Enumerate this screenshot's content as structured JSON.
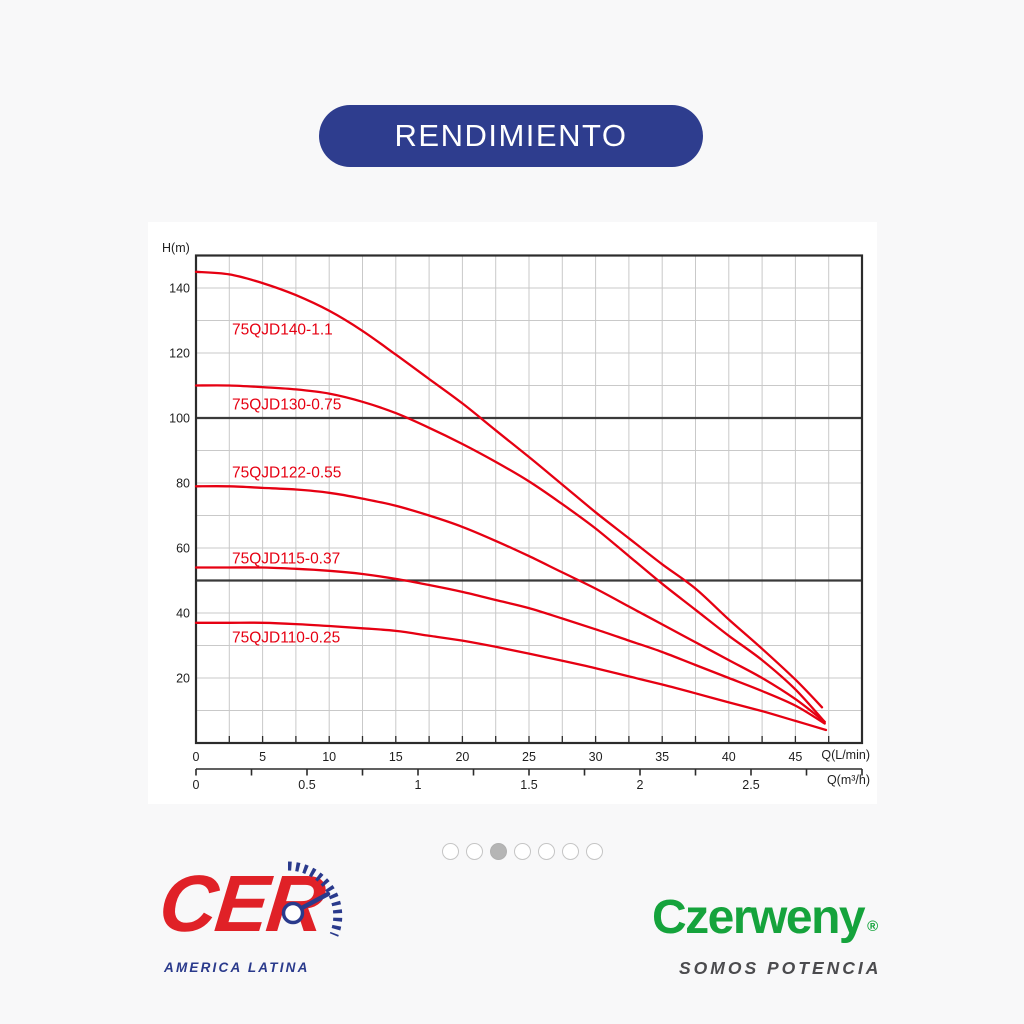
{
  "page": {
    "background": "#f8f8f9"
  },
  "header": {
    "title": "RENDIMIENTO",
    "pill_color": "#2e3d8e"
  },
  "chart_data": {
    "type": "line",
    "title": "",
    "ylabel": "H(m)",
    "xlabel_primary": "Q(L/min)",
    "xlabel_secondary": "Q(m³/h)",
    "x_range_lmin": [
      0,
      50
    ],
    "y_range": [
      0,
      150
    ],
    "x_grid_step_lmin": 2.5,
    "y_grid_step": 10,
    "x_tick_labels_lmin": [
      0,
      5,
      10,
      15,
      20,
      25,
      30,
      35,
      40,
      45
    ],
    "y_tick_labels": [
      20,
      40,
      60,
      80,
      100,
      120,
      140
    ],
    "emphasis_lines_y": [
      50,
      100
    ],
    "grid": true,
    "legend_position": "inline-labels",
    "secondary_axis": {
      "lmin_per_unit": 16.6667,
      "tick_step": 0.25,
      "labels": [
        0,
        0.5,
        1,
        1.5,
        2,
        2.5
      ]
    },
    "colors": {
      "curve": "#e60012",
      "grid": "#c9c9c9",
      "border": "#2b2b2b",
      "emphasis": "#3a3a3a",
      "text": "#1f1f1f"
    },
    "series": [
      {
        "name": "75QJD140-1.1",
        "label_anchor": {
          "q": 2.7,
          "h": 127.4
        },
        "points": [
          [
            0,
            145
          ],
          [
            2.5,
            144.2
          ],
          [
            5,
            141.5
          ],
          [
            7.5,
            137.8
          ],
          [
            10,
            133
          ],
          [
            12.5,
            126.8
          ],
          [
            15,
            119.5
          ],
          [
            17.5,
            112
          ],
          [
            20,
            104.5
          ],
          [
            22.5,
            96.2
          ],
          [
            25,
            88
          ],
          [
            27.5,
            79.5
          ],
          [
            30,
            71
          ],
          [
            32.5,
            63
          ],
          [
            35,
            55
          ],
          [
            37.5,
            47.5
          ],
          [
            40,
            38
          ],
          [
            42.5,
            29
          ],
          [
            45,
            19.5
          ],
          [
            47,
            11
          ]
        ]
      },
      {
        "name": "75QJD130-0.75",
        "label_anchor": {
          "q": 2.7,
          "h": 104.3
        },
        "points": [
          [
            0,
            110
          ],
          [
            2.5,
            110
          ],
          [
            5,
            109.5
          ],
          [
            7.5,
            108.8
          ],
          [
            10,
            107.5
          ],
          [
            12.5,
            105
          ],
          [
            15,
            101.5
          ],
          [
            17.5,
            97
          ],
          [
            20,
            92
          ],
          [
            22.5,
            86.5
          ],
          [
            25,
            80.5
          ],
          [
            27.5,
            73.5
          ],
          [
            30,
            66
          ],
          [
            32.5,
            57.5
          ],
          [
            35,
            49
          ],
          [
            37.5,
            41
          ],
          [
            40,
            33
          ],
          [
            42.5,
            25.5
          ],
          [
            45,
            16.5
          ],
          [
            47.2,
            6.5
          ]
        ]
      },
      {
        "name": "75QJD122-0.55",
        "label_anchor": {
          "q": 2.7,
          "h": 83.4
        },
        "points": [
          [
            0,
            79
          ],
          [
            2.5,
            79
          ],
          [
            5,
            78.5
          ],
          [
            7.5,
            78
          ],
          [
            10,
            77
          ],
          [
            12.5,
            75.2
          ],
          [
            15,
            73
          ],
          [
            17.5,
            70
          ],
          [
            20,
            66.5
          ],
          [
            22.5,
            62.2
          ],
          [
            25,
            57.5
          ],
          [
            27.5,
            52.5
          ],
          [
            30,
            47.5
          ],
          [
            32.5,
            42
          ],
          [
            35,
            36.5
          ],
          [
            37.5,
            31
          ],
          [
            40,
            25.5
          ],
          [
            42.5,
            20
          ],
          [
            45,
            13.5
          ],
          [
            47.2,
            6.5
          ]
        ]
      },
      {
        "name": "75QJD115-0.37",
        "label_anchor": {
          "q": 2.7,
          "h": 57
        },
        "points": [
          [
            0,
            54
          ],
          [
            2.5,
            54
          ],
          [
            5,
            54
          ],
          [
            7.5,
            53.6
          ],
          [
            10,
            53
          ],
          [
            12.5,
            52
          ],
          [
            15,
            50.5
          ],
          [
            17.5,
            48.6
          ],
          [
            20,
            46.5
          ],
          [
            22.5,
            44
          ],
          [
            25,
            41.5
          ],
          [
            27.5,
            38.3
          ],
          [
            30,
            35
          ],
          [
            32.5,
            31.5
          ],
          [
            35,
            28
          ],
          [
            37.5,
            24
          ],
          [
            40,
            20
          ],
          [
            42.5,
            16
          ],
          [
            45,
            11.5
          ],
          [
            47.2,
            6
          ]
        ]
      },
      {
        "name": "75QJD110-0.25",
        "label_anchor": {
          "q": 2.7,
          "h": 32.6
        },
        "points": [
          [
            0,
            37
          ],
          [
            2.5,
            37
          ],
          [
            5,
            37
          ],
          [
            7.5,
            36.6
          ],
          [
            10,
            36
          ],
          [
            12.5,
            35.3
          ],
          [
            15,
            34.5
          ],
          [
            17.5,
            33
          ],
          [
            20,
            31.5
          ],
          [
            22.5,
            29.6
          ],
          [
            25,
            27.5
          ],
          [
            27.5,
            25.3
          ],
          [
            30,
            23
          ],
          [
            32.5,
            20.5
          ],
          [
            35,
            18
          ],
          [
            37.5,
            15.3
          ],
          [
            40,
            12.5
          ],
          [
            42.5,
            9.8
          ],
          [
            45,
            6.8
          ],
          [
            47.3,
            4
          ]
        ]
      }
    ]
  },
  "carousel": {
    "count": 7,
    "active_index": 2
  },
  "logos": {
    "cer": {
      "text": "CER",
      "subtext": "AMERICA LATINA",
      "red": "#e02127",
      "blue": "#2a3a8c"
    },
    "czerweny": {
      "text": "Czerweny",
      "reg": "®",
      "tagline": "SOMOS POTENCIA",
      "green": "#15a33c",
      "gray": "#4b4b4e"
    }
  }
}
